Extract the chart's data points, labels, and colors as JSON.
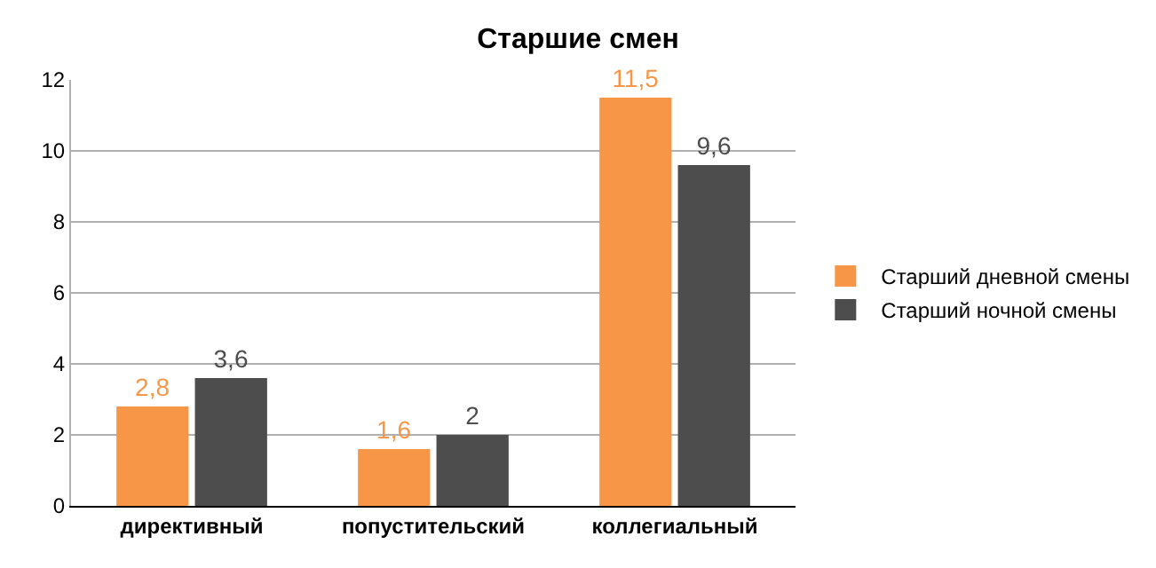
{
  "chart_data": {
    "type": "bar",
    "title": "Старшие смен",
    "categories": [
      "директивный",
      "попустительский",
      "коллегиальный"
    ],
    "series": [
      {
        "name": "Старший дневной смены",
        "color": "#f79646",
        "values": [
          2.8,
          1.6,
          11.5
        ],
        "value_labels": [
          "2,8",
          "1,6",
          "11,5"
        ]
      },
      {
        "name": "Старший ночной смены",
        "color": "#4d4d4d",
        "values": [
          3.6,
          2,
          9.6
        ],
        "value_labels": [
          "3,6",
          "2",
          "9,6"
        ]
      }
    ],
    "ylim": [
      0,
      12
    ],
    "yticks": [
      0,
      2,
      4,
      6,
      8,
      10,
      12
    ],
    "grid": "y",
    "legend": "right"
  }
}
